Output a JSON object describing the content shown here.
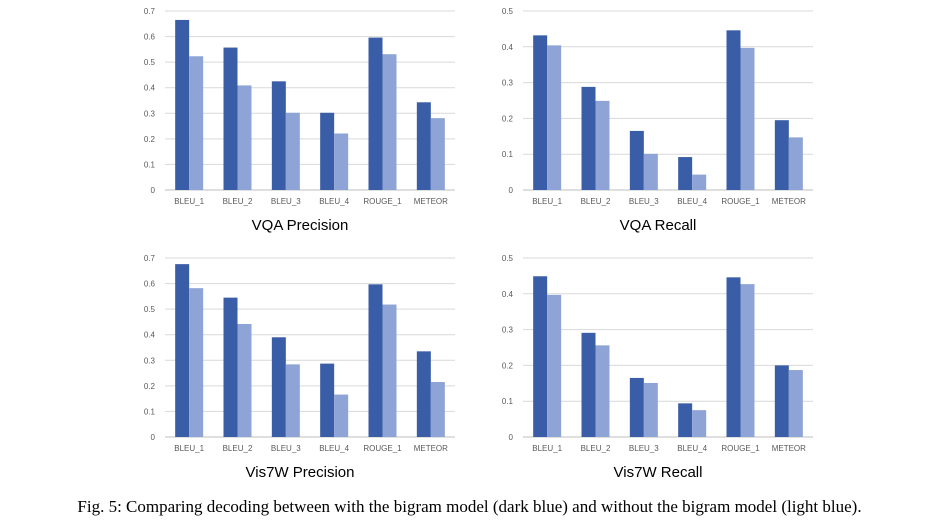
{
  "colors": {
    "with_bigram": "#3a5da8",
    "without_bigram": "#8ea3d6",
    "grid": "#d9d9d9",
    "axis": "#bfbfbf"
  },
  "caption": "Fig. 5: Comparing decoding between with the bigram model (dark blue) and without the bigram model (light blue).",
  "chart_data": [
    {
      "type": "bar",
      "title": "VQA Precision",
      "categories": [
        "BLEU_1",
        "BLEU_2",
        "BLEU_3",
        "BLEU_4",
        "ROUGE_1",
        "METEOR"
      ],
      "series": [
        {
          "values": [
            0.665,
            0.557,
            0.425,
            0.302,
            0.596,
            0.343
          ]
        },
        {
          "values": [
            0.523,
            0.409,
            0.302,
            0.221,
            0.531,
            0.281
          ]
        }
      ],
      "ylim": [
        0,
        0.7
      ],
      "yticks": [
        "0",
        "0.1",
        "0.2",
        "0.3",
        "0.4",
        "0.5",
        "0.6",
        "0.7"
      ],
      "grid": true,
      "xlabel": "",
      "ylabel": ""
    },
    {
      "type": "bar",
      "title": "VQA Recall",
      "categories": [
        "BLEU_1",
        "BLEU_2",
        "BLEU_3",
        "BLEU_4",
        "ROUGE_1",
        "METEOR"
      ],
      "series": [
        {
          "values": [
            0.432,
            0.288,
            0.165,
            0.092,
            0.446,
            0.195
          ]
        },
        {
          "values": [
            0.404,
            0.249,
            0.101,
            0.043,
            0.397,
            0.147
          ]
        }
      ],
      "ylim": [
        0,
        0.5
      ],
      "yticks": [
        "0",
        "0.1",
        "0.2",
        "0.3",
        "0.4",
        "0.5"
      ],
      "grid": true,
      "xlabel": "",
      "ylabel": ""
    },
    {
      "type": "bar",
      "title": "Vis7W Precision",
      "categories": [
        "BLEU_1",
        "BLEU_2",
        "BLEU_3",
        "BLEU_4",
        "ROUGE_1",
        "METEOR"
      ],
      "series": [
        {
          "values": [
            0.676,
            0.545,
            0.39,
            0.287,
            0.597,
            0.335
          ]
        },
        {
          "values": [
            0.582,
            0.442,
            0.284,
            0.166,
            0.518,
            0.215
          ]
        }
      ],
      "ylim": [
        0,
        0.7
      ],
      "yticks": [
        "0",
        "0.1",
        "0.2",
        "0.3",
        "0.4",
        "0.5",
        "0.6",
        "0.7"
      ],
      "grid": true,
      "xlabel": "",
      "ylabel": ""
    },
    {
      "type": "bar",
      "title": "Vis7W Recall",
      "categories": [
        "BLEU_1",
        "BLEU_2",
        "BLEU_3",
        "BLEU_4",
        "ROUGE_1",
        "METEOR"
      ],
      "series": [
        {
          "values": [
            0.449,
            0.291,
            0.165,
            0.094,
            0.446,
            0.2
          ]
        },
        {
          "values": [
            0.397,
            0.256,
            0.151,
            0.075,
            0.427,
            0.187
          ]
        }
      ],
      "ylim": [
        0,
        0.5
      ],
      "yticks": [
        "0",
        "0.1",
        "0.2",
        "0.3",
        "0.4",
        "0.5"
      ],
      "grid": true,
      "xlabel": "",
      "ylabel": ""
    }
  ]
}
